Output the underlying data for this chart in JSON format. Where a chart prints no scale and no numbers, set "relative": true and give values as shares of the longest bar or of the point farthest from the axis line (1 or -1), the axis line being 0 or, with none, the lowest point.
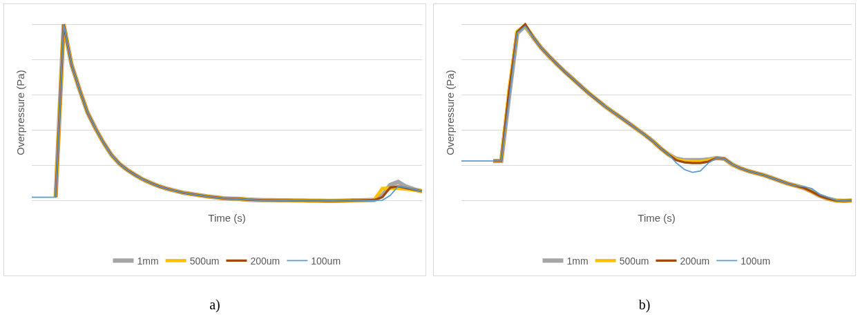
{
  "chart_data": [
    {
      "type": "line",
      "relative": true,
      "xlabel": "Time (s)",
      "ylabel": "Overpressure (Pa)",
      "grid": "y",
      "legend": "bottom",
      "annotations": [
        "a)"
      ],
      "categories": [
        null,
        null,
        null,
        null,
        null,
        null,
        null,
        null,
        null,
        null,
        null,
        null,
        null,
        null,
        null,
        null,
        null,
        null,
        null,
        null,
        null,
        null,
        null,
        null,
        null,
        null,
        null,
        null,
        null,
        null,
        null,
        null,
        null,
        null,
        null,
        null,
        null,
        null,
        null,
        null,
        null,
        null,
        null,
        null,
        null,
        null,
        null,
        null,
        null,
        null
      ],
      "series": [
        {
          "name": "1mm",
          "color": "#a5a5a5",
          "values": [
            null,
            null,
            null,
            0.02,
            1,
            0.77,
            0.63,
            0.5,
            0.41,
            0.33,
            0.26,
            0.21,
            0.175,
            0.146,
            0.12,
            0.1,
            0.082,
            0.068,
            0.057,
            0.046,
            0.039,
            0.032,
            0.025,
            0.02,
            0.014,
            0.012,
            0.011,
            0.007,
            0.005,
            0.004,
            0.004,
            0.003,
            0.003,
            0.002,
            0.002,
            0.001,
            0.001,
            0,
            0,
            0.001,
            0.002,
            0.003,
            0.004,
            0.005,
            0.03,
            0.09,
            0.107,
            0.08,
            0.065,
            0.054
          ]
        },
        {
          "name": "500um",
          "color": "#ffc000",
          "values": [
            null,
            null,
            null,
            0.02,
            1,
            0.77,
            0.63,
            0.5,
            0.41,
            0.33,
            0.26,
            0.21,
            0.175,
            0.146,
            0.12,
            0.1,
            0.082,
            0.068,
            0.057,
            0.046,
            0.039,
            0.032,
            0.025,
            0.02,
            0.014,
            0.012,
            0.011,
            0.007,
            0.005,
            0.004,
            0.004,
            0.003,
            0.003,
            0.002,
            0.002,
            0.001,
            0.001,
            0,
            0,
            0.001,
            0.002,
            0.003,
            0.004,
            0.006,
            0.07,
            0.071,
            0.07,
            0.066,
            0.06,
            0.054
          ]
        },
        {
          "name": "200um",
          "color": "#9e480e",
          "values": [
            null,
            null,
            null,
            0.02,
            1,
            0.77,
            0.63,
            0.5,
            0.41,
            0.33,
            0.26,
            0.21,
            0.175,
            0.146,
            0.12,
            0.1,
            0.082,
            0.068,
            0.057,
            0.046,
            0.039,
            0.032,
            0.025,
            0.02,
            0.014,
            0.012,
            0.011,
            0.007,
            0.005,
            0.004,
            0.004,
            0.003,
            0.003,
            0.002,
            0.002,
            0.001,
            0.001,
            0,
            0,
            0.001,
            0.002,
            0.003,
            0.004,
            0.005,
            0.02,
            0.075,
            0.082,
            0.072,
            0.063,
            0.054
          ]
        },
        {
          "name": "100um",
          "color": "#5b9bd5",
          "values": [
            0.02,
            0.02,
            0.02,
            0.02,
            1,
            0.77,
            0.63,
            0.5,
            0.41,
            0.33,
            0.26,
            0.21,
            0.175,
            0.146,
            0.12,
            0.1,
            0.082,
            0.068,
            0.057,
            0.046,
            0.039,
            0.032,
            0.025,
            0.02,
            0.014,
            0.012,
            0.011,
            0.007,
            0.005,
            0.004,
            0.004,
            0.003,
            0.003,
            0.002,
            0.002,
            0.001,
            0.001,
            0,
            0,
            0.001,
            0.002,
            0.002,
            0.002,
            0.002,
            0.003,
            0.03,
            0.082,
            0.075,
            0.064,
            0.054
          ]
        }
      ]
    },
    {
      "type": "line",
      "relative": true,
      "xlabel": "Time (s)",
      "ylabel": "Overpressure (Pa)",
      "grid": "y",
      "legend": "bottom",
      "annotations": [
        "b)"
      ],
      "categories": [
        null,
        null,
        null,
        null,
        null,
        null,
        null,
        null,
        null,
        null,
        null,
        null,
        null,
        null,
        null,
        null,
        null,
        null,
        null,
        null,
        null,
        null,
        null,
        null,
        null,
        null,
        null,
        null,
        null,
        null,
        null,
        null,
        null,
        null,
        null,
        null,
        null,
        null,
        null,
        null,
        null,
        null,
        null,
        null,
        null,
        null,
        null,
        null,
        null,
        null
      ],
      "series": [
        {
          "name": "1mm",
          "color": "#a5a5a5",
          "values": [
            null,
            null,
            null,
            null,
            0.226,
            0.226,
            0.6,
            0.95,
            0.99,
            0.927,
            0.867,
            0.819,
            0.774,
            0.73,
            0.69,
            0.649,
            0.609,
            0.573,
            0.536,
            0.504,
            0.472,
            0.44,
            0.407,
            0.375,
            0.339,
            0.298,
            0.262,
            0.238,
            0.23,
            0.23,
            0.23,
            0.234,
            0.242,
            0.238,
            0.206,
            0.185,
            0.169,
            0.157,
            0.145,
            0.129,
            0.113,
            0.097,
            0.085,
            0.073,
            0.052,
            0.028,
            0.012,
            0.002,
            0,
            0.002
          ]
        },
        {
          "name": "500um",
          "color": "#ffc000",
          "values": [
            null,
            null,
            null,
            null,
            0.226,
            0.226,
            0.64,
            0.96,
            0.995,
            0.927,
            0.867,
            0.819,
            0.774,
            0.73,
            0.69,
            0.649,
            0.609,
            0.573,
            0.536,
            0.504,
            0.472,
            0.44,
            0.407,
            0.375,
            0.339,
            0.298,
            0.262,
            0.234,
            0.226,
            0.222,
            0.222,
            0.23,
            0.242,
            0.238,
            0.206,
            0.185,
            0.169,
            0.157,
            0.145,
            0.129,
            0.113,
            0.097,
            0.085,
            0.073,
            0.052,
            0.028,
            0.012,
            0.002,
            0,
            0.002
          ]
        },
        {
          "name": "200um",
          "color": "#9e480e",
          "values": [
            null,
            null,
            null,
            null,
            0.226,
            0.226,
            0.625,
            0.956,
            1,
            0.927,
            0.867,
            0.819,
            0.774,
            0.73,
            0.69,
            0.649,
            0.609,
            0.573,
            0.536,
            0.504,
            0.472,
            0.44,
            0.407,
            0.375,
            0.339,
            0.298,
            0.262,
            0.23,
            0.218,
            0.214,
            0.214,
            0.222,
            0.242,
            0.238,
            0.206,
            0.185,
            0.169,
            0.157,
            0.145,
            0.129,
            0.113,
            0.097,
            0.085,
            0.073,
            0.052,
            0.028,
            0.012,
            0.002,
            0,
            0.002
          ]
        },
        {
          "name": "100um",
          "color": "#5b9bd5",
          "values": [
            0.226,
            0.226,
            0.226,
            0.226,
            0.226,
            0.226,
            0.58,
            0.95,
            0.99,
            0.927,
            0.867,
            0.819,
            0.774,
            0.73,
            0.69,
            0.649,
            0.609,
            0.573,
            0.536,
            0.504,
            0.472,
            0.44,
            0.407,
            0.375,
            0.339,
            0.298,
            0.262,
            0.214,
            0.177,
            0.161,
            0.169,
            0.214,
            0.242,
            0.238,
            0.206,
            0.185,
            0.169,
            0.157,
            0.145,
            0.129,
            0.113,
            0.097,
            0.085,
            0.081,
            0.069,
            0.036,
            0.02,
            0.004,
            0,
            0.002
          ]
        }
      ]
    }
  ]
}
